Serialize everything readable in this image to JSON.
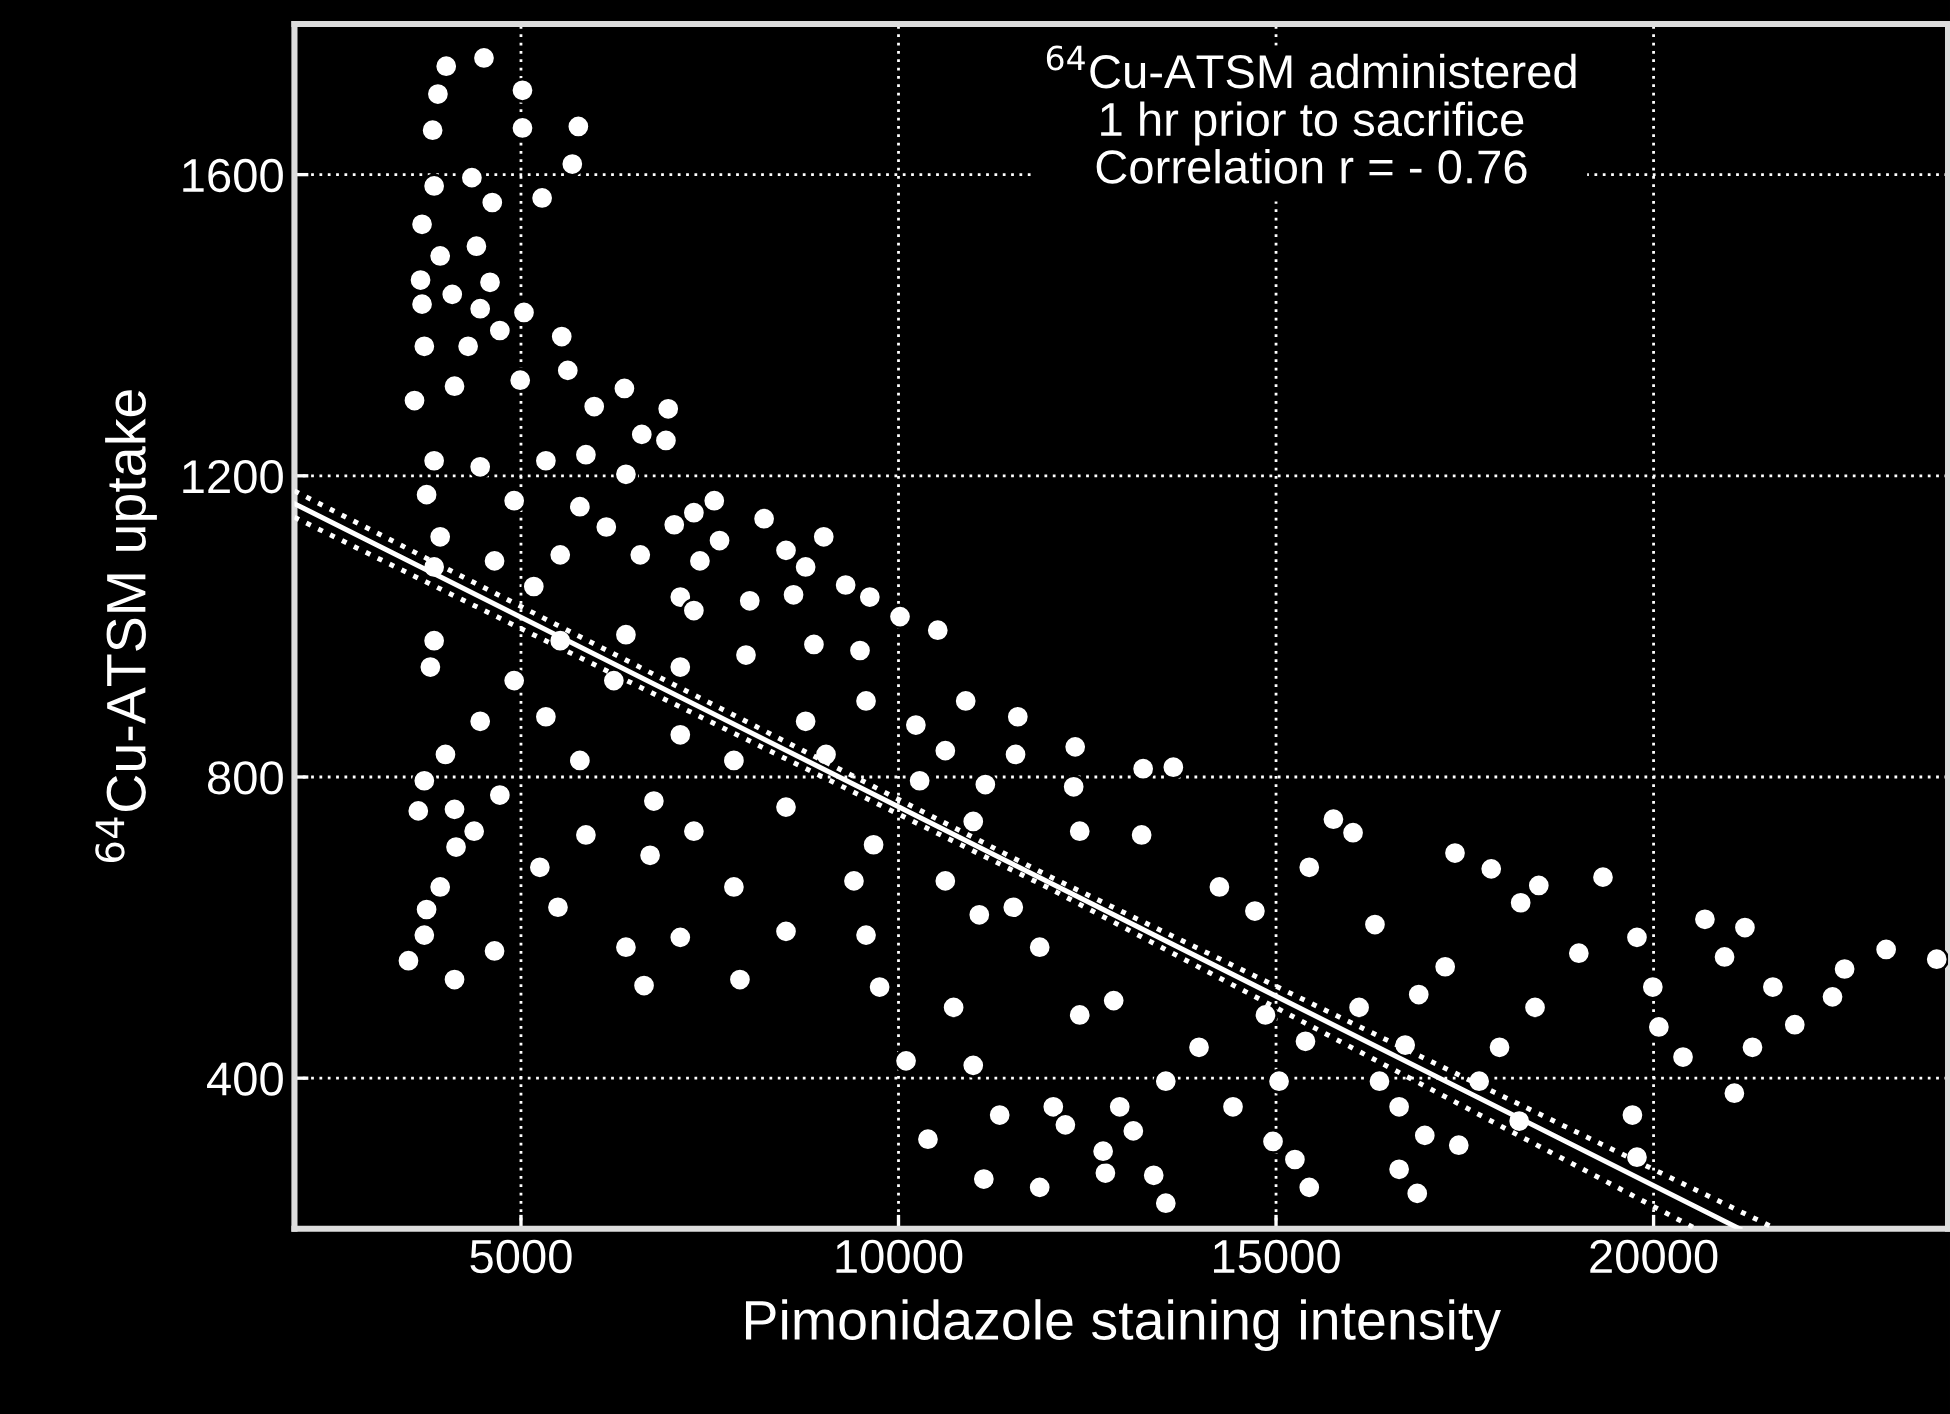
{
  "chart_data": {
    "type": "scatter",
    "xlabel": "Pimonidazole staining intensity",
    "ylabel": "$^{64}$Cu-ATSM uptake",
    "annotations": [
      "$^{64}$Cu-ATSM administered\n1 hr prior to sacrifice\nCorrelation r = - 0.76"
    ],
    "xlim": [
      2000,
      23900
    ],
    "ylim": [
      200,
      1800
    ],
    "xticks": [
      5000,
      10000,
      15000,
      20000
    ],
    "yticks": [
      400,
      800,
      1200,
      1600
    ],
    "grid": true,
    "series": [
      {
        "color": "#ffffff",
        "marker": "circle",
        "x": [
          4510,
          4010,
          3900,
          5020,
          5020,
          5760,
          5680,
          3830,
          3850,
          4350,
          5280,
          4620,
          3690,
          4410,
          3930,
          3670,
          4090,
          4590,
          3690,
          4460,
          5040,
          5540,
          3720,
          4300,
          4720,
          3590,
          4120,
          4990,
          5620,
          6370,
          6950,
          5970,
          6600,
          6920,
          3850,
          4460,
          5330,
          5860,
          6390,
          3750,
          4910,
          5780,
          7560,
          7290,
          8220,
          6130,
          7030,
          3930,
          7630,
          8510,
          9010,
          7370,
          8770,
          9300,
          9620,
          8610,
          4650,
          5520,
          6580,
          3850,
          5170,
          7110,
          8030,
          10020,
          10520,
          7290,
          8880,
          9490,
          3850,
          5520,
          6390,
          3800,
          4910,
          6230,
          7110,
          7980,
          9570,
          4460,
          5330,
          7110,
          8770,
          10230,
          10890,
          11580,
          12340,
          4000,
          5780,
          7820,
          9040,
          10620,
          11550,
          3720,
          4720,
          6760,
          8510,
          10280,
          11150,
          12320,
          3640,
          4120,
          4380,
          5860,
          7290,
          9670,
          10990,
          12400,
          4140,
          5250,
          6710,
          7820,
          9410,
          10620,
          11520,
          3930,
          3750,
          5490,
          7110,
          8510,
          9570,
          11070,
          11870,
          3720,
          4650,
          3510,
          4120,
          6390,
          7900,
          9750,
          10730,
          12400,
          6630,
          10100,
          10990,
          12050,
          11340,
          12210,
          10390,
          11130,
          11870,
          12740,
          13240,
          13640,
          13220,
          15760,
          16020,
          17370,
          17850,
          19330,
          18480,
          14250,
          15440,
          18240,
          16310,
          20680,
          21210,
          14720,
          19780,
          19010,
          20940,
          23080,
          23750,
          22530,
          17240,
          19990,
          22370,
          21580,
          16890,
          18430,
          20070,
          21870,
          12850,
          14860,
          16100,
          13980,
          15390,
          16710,
          17960,
          20390,
          21310,
          13540,
          15040,
          16370,
          17690,
          21070,
          12930,
          14430,
          16630,
          18220,
          19720,
          13110,
          14960,
          16970,
          12710,
          15250,
          17420,
          19780,
          13380,
          16630,
          13540,
          15440,
          16870
        ],
        "values": [
          1755,
          1744,
          1707,
          1712,
          1662,
          1664,
          1614,
          1659,
          1585,
          1596,
          1569,
          1563,
          1534,
          1505,
          1492,
          1460,
          1441,
          1457,
          1428,
          1422,
          1417,
          1385,
          1372,
          1372,
          1393,
          1300,
          1319,
          1327,
          1340,
          1316,
          1289,
          1292,
          1255,
          1247,
          1220,
          1212,
          1220,
          1228,
          1202,
          1175,
          1167,
          1159,
          1167,
          1151,
          1143,
          1132,
          1135,
          1119,
          1114,
          1101,
          1119,
          1087,
          1079,
          1055,
          1039,
          1042,
          1087,
          1095,
          1095,
          1079,
          1053,
          1039,
          1034,
          1013,
          995,
          1021,
          976,
          968,
          981,
          981,
          989,
          946,
          928,
          928,
          946,
          962,
          901,
          874,
          880,
          856,
          874,
          869,
          901,
          880,
          840,
          830,
          822,
          822,
          830,
          835,
          830,
          795,
          776,
          768,
          760,
          795,
          790,
          787,
          755,
          757,
          728,
          723,
          728,
          710,
          741,
          728,
          707,
          680,
          696,
          654,
          662,
          662,
          627,
          654,
          624,
          627,
          587,
          595,
          590,
          617,
          574,
          590,
          569,
          556,
          531,
          574,
          531,
          521,
          494,
          484,
          523,
          423,
          417,
          362,
          351,
          338,
          319,
          266,
          255,
          274,
          811,
          813,
          723,
          744,
          726,
          699,
          678,
          667,
          656,
          654,
          680,
          633,
          604,
          611,
          600,
          622,
          587,
          566,
          561,
          571,
          558,
          545,
          548,
          521,
          508,
          521,
          511,
          494,
          468,
          471,
          503,
          484,
          494,
          441,
          449,
          444,
          441,
          428,
          441,
          396,
          396,
          396,
          396,
          380,
          362,
          362,
          362,
          343,
          351,
          330,
          316,
          324,
          303,
          292,
          311,
          295,
          271,
          279,
          234,
          255,
          247
        ]
      },
      {
        "type": "line",
        "color": "#ffffff",
        "line_style": "solid",
        "x": [
          2000,
          21140
        ],
        "values": [
          1163,
          200
        ]
      },
      {
        "type": "line",
        "color": "#ffffff",
        "line_style": "dotted",
        "x": [
          2000,
          12000,
          21620
        ],
        "values": [
          1180,
          668,
          200
        ]
      },
      {
        "type": "line",
        "color": "#ffffff",
        "line_style": "dotted",
        "x": [
          2000,
          12000,
          20560
        ],
        "values": [
          1145,
          652,
          200
        ]
      }
    ]
  }
}
